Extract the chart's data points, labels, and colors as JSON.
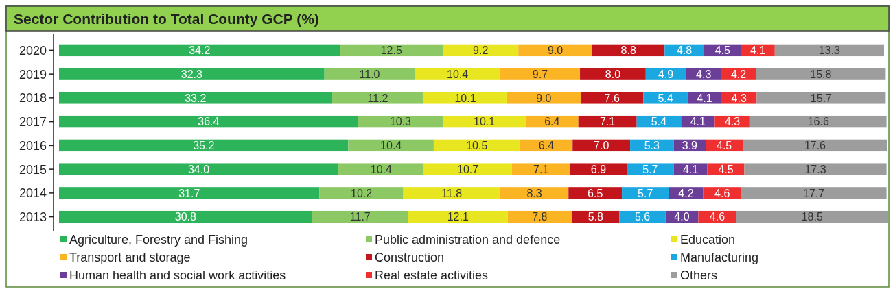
{
  "chart_data": {
    "type": "bar",
    "orientation": "horizontal",
    "stacked": true,
    "legend": "bottom",
    "title": "Sector Contribution to Total County GCP (%)",
    "categories": [
      "2020",
      "2019",
      "2018",
      "2017",
      "2016",
      "2015",
      "2014",
      "2013"
    ],
    "series": [
      {
        "name": "Agriculture, Forestry and Fishing",
        "color": "#2db45a",
        "values": [
          34.2,
          32.3,
          33.2,
          36.4,
          35.2,
          34.0,
          31.7,
          30.8
        ],
        "value_labels": [
          "34.2",
          "32.3",
          "33.2",
          "36.4",
          "35.2",
          "34.0",
          "31.7",
          "30.8"
        ]
      },
      {
        "name": "Public administration and defence",
        "color": "#8cc864",
        "values": [
          12.5,
          11.0,
          11.2,
          10.3,
          10.4,
          10.4,
          10.2,
          11.7
        ],
        "value_labels": [
          "12.5",
          "11.0",
          "11.2",
          "10.3",
          "10.4",
          "10.4",
          "10.2",
          "11.7"
        ]
      },
      {
        "name": "Education",
        "color": "#e8e621",
        "values": [
          9.2,
          10.4,
          10.1,
          10.1,
          10.5,
          10.7,
          11.8,
          12.1
        ],
        "value_labels": [
          "9.2",
          "10.4",
          "10.1",
          "10.1",
          "10.5",
          "10.7",
          "11.8",
          "12.1"
        ]
      },
      {
        "name": "Transport and storage",
        "color": "#fbb424",
        "values": [
          9.0,
          9.7,
          9.0,
          6.4,
          6.4,
          7.1,
          8.3,
          7.8
        ],
        "value_labels": [
          "9.0",
          "9.7",
          "9.0",
          "6.4",
          "6.4",
          "7.1",
          "8.3",
          "7.8"
        ]
      },
      {
        "name": "Construction",
        "color": "#c3161c",
        "values": [
          8.8,
          8.0,
          7.6,
          7.1,
          7.0,
          6.9,
          6.5,
          5.8
        ],
        "value_labels": [
          "8.8",
          "8.0",
          "7.6",
          "7.1",
          "7.0",
          "6.9",
          "6.5",
          "5.8"
        ]
      },
      {
        "name": "Manufacturing",
        "color": "#1ba8e0",
        "values": [
          4.8,
          4.9,
          5.4,
          5.4,
          5.3,
          5.7,
          5.7,
          5.6
        ],
        "value_labels": [
          "4.8",
          "4.9",
          "5.4",
          "5.4",
          "5.3",
          "5.7",
          "5.7",
          "5.6"
        ]
      },
      {
        "name": "Human health and social work activities",
        "color": "#6b3f98",
        "values": [
          4.5,
          4.3,
          4.1,
          4.1,
          3.9,
          4.1,
          4.2,
          4.0
        ],
        "value_labels": [
          "4.5",
          "4.3",
          "4.1",
          "4.1",
          "3.9",
          "4.1",
          "4.2",
          "4.0"
        ]
      },
      {
        "name": "Real estate activities",
        "color": "#ee3030",
        "values": [
          4.1,
          4.2,
          4.3,
          4.3,
          4.5,
          4.5,
          4.6,
          4.6
        ],
        "value_labels": [
          "4.1",
          "4.2",
          "4.3",
          "4.3",
          "4.5",
          "4.5",
          "4.6",
          "4.6"
        ]
      },
      {
        "name": "Others",
        "color": "#9d9d9d",
        "values": [
          13.3,
          15.8,
          15.7,
          16.6,
          17.6,
          17.3,
          17.7,
          18.5
        ],
        "value_labels": [
          "13.3",
          "15.8",
          "15.7",
          "16.6",
          "17.6",
          "17.3",
          "17.7",
          "18.5"
        ]
      }
    ]
  }
}
